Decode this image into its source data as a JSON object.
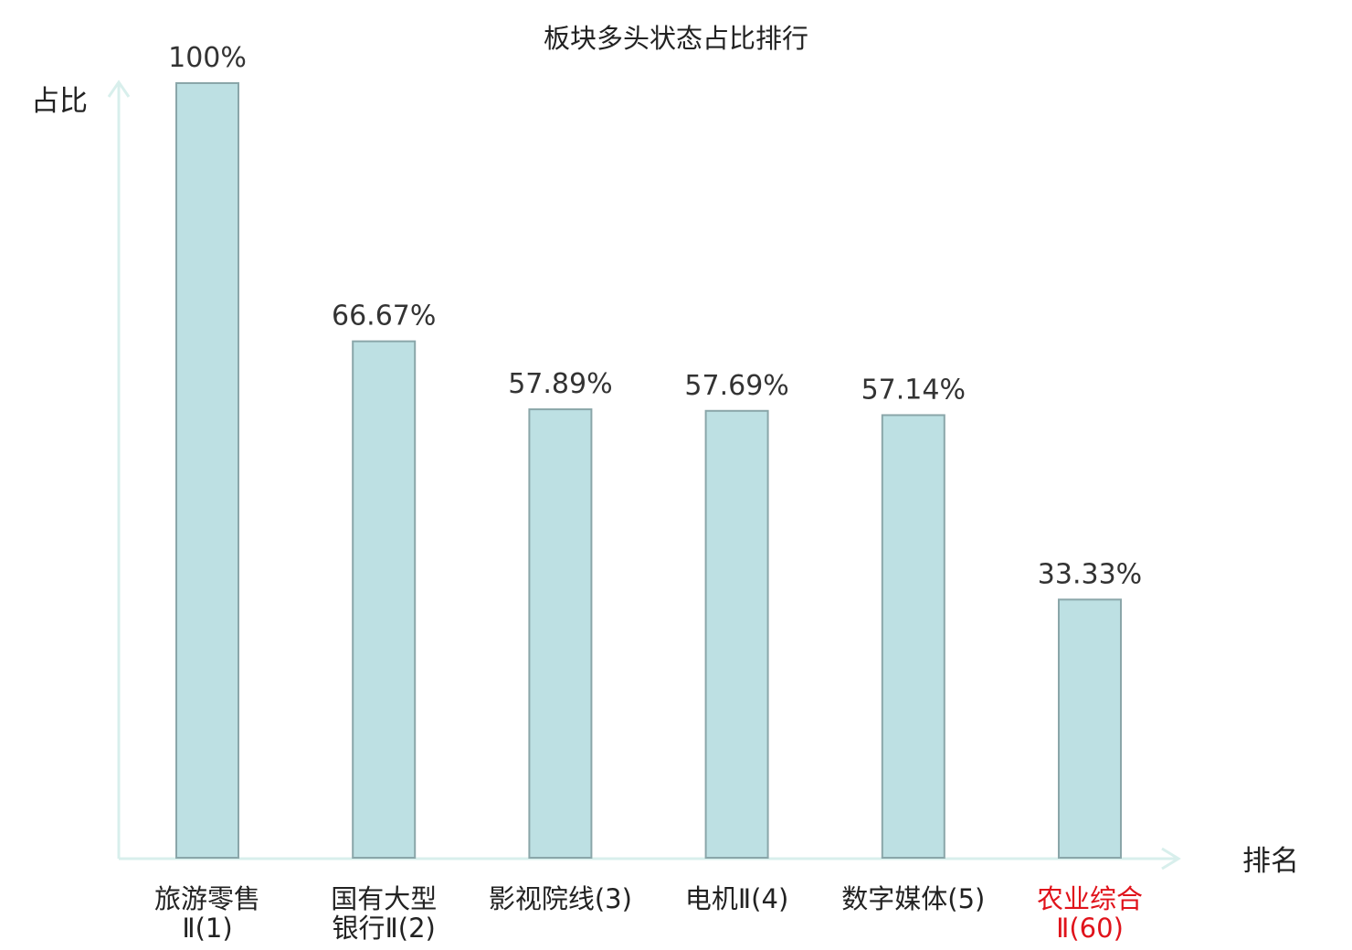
{
  "chart_data": {
    "type": "bar",
    "title": "板块多头状态占比排行",
    "ylabel": "占比",
    "xlabel": "排名",
    "categories": [
      [
        "旅游零售",
        "Ⅱ(1)"
      ],
      [
        "国有大型",
        "银行Ⅱ(2)"
      ],
      [
        "影视院线(3)"
      ],
      [
        "电机Ⅱ(4)"
      ],
      [
        "数字媒体(5)"
      ],
      [
        "农业综合",
        "Ⅱ(60)"
      ]
    ],
    "values": [
      100,
      66.67,
      57.89,
      57.69,
      57.14,
      33.33
    ],
    "value_labels": [
      "100%",
      "66.67%",
      "57.89%",
      "57.69%",
      "57.14%",
      "33.33%"
    ],
    "highlight_index": 5,
    "ylim": [
      0,
      100
    ],
    "grid": false,
    "legend": "none",
    "colors": {
      "bar_fill": "#bde0e3",
      "bar_stroke": "#8aa6a9",
      "axis": "#d8efec",
      "highlight_text": "#e0131b"
    }
  }
}
